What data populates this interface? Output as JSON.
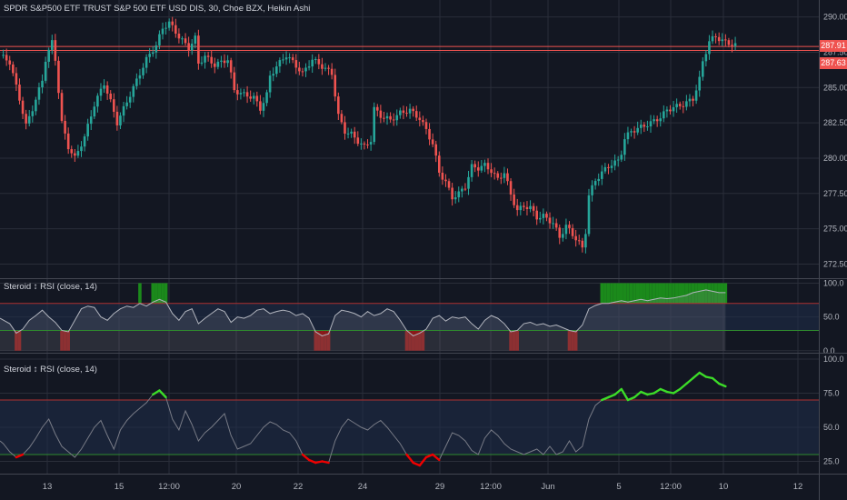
{
  "header": {
    "main_title": "SPDR S&P500 ETF TRUST S&P 500 ETF USD DIS, 30, Choe BZX, Heikin Ashi",
    "pane2_title": "Steroid ↕ RSI (close, 14)",
    "pane3_title": "Steroid ↕ RSI (close, 14)"
  },
  "price_tags": {
    "upper": "287.91",
    "lower": "287.63"
  },
  "colors": {
    "background": "#131722",
    "grid": "#2a2e39",
    "bull": "#26a69a",
    "bear": "#ef5350",
    "rsi_line": "#b2b5be",
    "green_band": "#1b8a1b",
    "red_band": "#8b1a1a",
    "green_line": "#3cdc28",
    "red_line": "#f00000",
    "overbought": "#b03030",
    "oversold": "#2e8b2e"
  },
  "chart_data": [
    {
      "type": "candlestick",
      "title": "SPDR S&P500 ETF TRUST S&P 500 ETF USD DIS, 30, Choe BZX, Heikin Ashi",
      "ylim": [
        271.5,
        291.2
      ],
      "y_ticks": [
        "290.00",
        "287.50",
        "285.00",
        "282.50",
        "280.00",
        "277.50",
        "275.00",
        "272.50"
      ],
      "horizontal_lines": [
        287.91,
        287.63
      ],
      "x_ticks": [
        "13",
        "15",
        "12:00",
        "20",
        "22",
        "24",
        "29",
        "12:00",
        "Jun",
        "5",
        "12:00",
        "10",
        "12"
      ],
      "close_path": [
        [
          0,
          287.3
        ],
        [
          3,
          286.8
        ],
        [
          6,
          284.2
        ],
        [
          8,
          282.3
        ],
        [
          10,
          283.5
        ],
        [
          13,
          285.5
        ],
        [
          14,
          287.0
        ],
        [
          16,
          288.2
        ],
        [
          17,
          287.0
        ],
        [
          19,
          282.5
        ],
        [
          21,
          280.8
        ],
        [
          23,
          280.0
        ],
        [
          26,
          281.5
        ],
        [
          29,
          283.8
        ],
        [
          32,
          285.3
        ],
        [
          34,
          284.0
        ],
        [
          36,
          282.5
        ],
        [
          39,
          284.0
        ],
        [
          42,
          285.5
        ],
        [
          45,
          287.0
        ],
        [
          48,
          288.0
        ],
        [
          50,
          289.2
        ],
        [
          52,
          289.6
        ],
        [
          55,
          288.6
        ],
        [
          58,
          287.8
        ],
        [
          60,
          288.5
        ],
        [
          61,
          286.7
        ],
        [
          63,
          287.2
        ],
        [
          66,
          286.6
        ],
        [
          68,
          286.8
        ],
        [
          70,
          287.0
        ],
        [
          72,
          284.8
        ],
        [
          75,
          284.5
        ],
        [
          78,
          284.3
        ],
        [
          80,
          283.5
        ],
        [
          82,
          284.5
        ],
        [
          83,
          285.8
        ],
        [
          85,
          286.5
        ],
        [
          88,
          287.3
        ],
        [
          90,
          286.8
        ],
        [
          93,
          286.0
        ],
        [
          96,
          287.0
        ],
        [
          99,
          286.5
        ],
        [
          102,
          286.0
        ],
        [
          104,
          283.0
        ],
        [
          106,
          281.9
        ],
        [
          108,
          281.7
        ],
        [
          110,
          281.2
        ],
        [
          112,
          280.8
        ],
        [
          114,
          281.3
        ],
        [
          115,
          283.5
        ],
        [
          117,
          283.0
        ],
        [
          120,
          282.7
        ],
        [
          123,
          283.2
        ],
        [
          126,
          283.4
        ],
        [
          129,
          282.8
        ],
        [
          131,
          282.0
        ],
        [
          133,
          281.0
        ],
        [
          135,
          279.0
        ],
        [
          137,
          278.3
        ],
        [
          139,
          277.2
        ],
        [
          141,
          277.5
        ],
        [
          143,
          278.0
        ],
        [
          145,
          279.4
        ],
        [
          147,
          279.3
        ],
        [
          149,
          279.5
        ],
        [
          151,
          279.1
        ],
        [
          153,
          278.5
        ],
        [
          155,
          279.0
        ],
        [
          157,
          277.4
        ],
        [
          159,
          276.3
        ],
        [
          161,
          276.6
        ],
        [
          163,
          276.5
        ],
        [
          165,
          275.8
        ],
        [
          167,
          275.9
        ],
        [
          170,
          275.4
        ],
        [
          172,
          274.4
        ],
        [
          174,
          275.2
        ],
        [
          176,
          274.6
        ],
        [
          178,
          274.0
        ],
        [
          179,
          273.6
        ],
        [
          180,
          274.8
        ],
        [
          181,
          277.4
        ],
        [
          183,
          278.4
        ],
        [
          185,
          279.0
        ],
        [
          188,
          279.6
        ],
        [
          190,
          279.8
        ],
        [
          191,
          280.4
        ],
        [
          192,
          281.4
        ],
        [
          194,
          281.9
        ],
        [
          197,
          282.2
        ],
        [
          200,
          282.5
        ],
        [
          203,
          282.9
        ],
        [
          205,
          283.4
        ],
        [
          207,
          283.6
        ],
        [
          210,
          283.8
        ],
        [
          213,
          284.2
        ],
        [
          215,
          285.6
        ],
        [
          216,
          286.8
        ],
        [
          218,
          288.3
        ],
        [
          220,
          288.6
        ],
        [
          223,
          288.2
        ],
        [
          226,
          288.0
        ]
      ]
    },
    {
      "type": "line",
      "title": "Steroid ↕ RSI (close, 14)",
      "ylim": [
        -3,
        106
      ],
      "y_ticks": [
        "100.0",
        "50.0",
        "0.0"
      ],
      "levels": [
        70,
        30
      ],
      "path": [
        [
          0,
          48
        ],
        [
          3,
          40
        ],
        [
          5,
          26
        ],
        [
          7,
          32
        ],
        [
          9,
          45
        ],
        [
          11,
          52
        ],
        [
          13,
          60
        ],
        [
          15,
          50
        ],
        [
          17,
          42
        ],
        [
          19,
          30
        ],
        [
          21,
          28
        ],
        [
          23,
          45
        ],
        [
          25,
          62
        ],
        [
          27,
          66
        ],
        [
          29,
          64
        ],
        [
          31,
          50
        ],
        [
          33,
          45
        ],
        [
          35,
          55
        ],
        [
          37,
          62
        ],
        [
          39,
          66
        ],
        [
          41,
          64
        ],
        [
          43,
          70
        ],
        [
          45,
          66
        ],
        [
          47,
          72
        ],
        [
          49,
          76
        ],
        [
          51,
          72
        ],
        [
          53,
          55
        ],
        [
          55,
          45
        ],
        [
          57,
          58
        ],
        [
          59,
          62
        ],
        [
          61,
          40
        ],
        [
          63,
          48
        ],
        [
          65,
          55
        ],
        [
          67,
          62
        ],
        [
          69,
          58
        ],
        [
          71,
          42
        ],
        [
          73,
          50
        ],
        [
          75,
          48
        ],
        [
          77,
          52
        ],
        [
          79,
          60
        ],
        [
          81,
          62
        ],
        [
          83,
          55
        ],
        [
          85,
          58
        ],
        [
          87,
          60
        ],
        [
          89,
          58
        ],
        [
          91,
          52
        ],
        [
          93,
          55
        ],
        [
          95,
          48
        ],
        [
          97,
          28
        ],
        [
          99,
          22
        ],
        [
          101,
          25
        ],
        [
          103,
          52
        ],
        [
          105,
          60
        ],
        [
          107,
          58
        ],
        [
          109,
          55
        ],
        [
          111,
          50
        ],
        [
          113,
          58
        ],
        [
          115,
          52
        ],
        [
          117,
          55
        ],
        [
          119,
          62
        ],
        [
          121,
          58
        ],
        [
          123,
          45
        ],
        [
          125,
          30
        ],
        [
          127,
          22
        ],
        [
          129,
          26
        ],
        [
          131,
          32
        ],
        [
          133,
          48
        ],
        [
          135,
          52
        ],
        [
          137,
          44
        ],
        [
          139,
          50
        ],
        [
          141,
          48
        ],
        [
          143,
          50
        ],
        [
          145,
          40
        ],
        [
          147,
          32
        ],
        [
          149,
          45
        ],
        [
          151,
          52
        ],
        [
          153,
          48
        ],
        [
          155,
          40
        ],
        [
          157,
          28
        ],
        [
          159,
          30
        ],
        [
          161,
          40
        ],
        [
          163,
          42
        ],
        [
          165,
          38
        ],
        [
          167,
          40
        ],
        [
          169,
          36
        ],
        [
          171,
          38
        ],
        [
          173,
          34
        ],
        [
          175,
          30
        ],
        [
          177,
          28
        ],
        [
          179,
          38
        ],
        [
          181,
          62
        ],
        [
          183,
          67
        ],
        [
          185,
          70
        ],
        [
          187,
          70
        ],
        [
          189,
          72
        ],
        [
          191,
          74
        ],
        [
          193,
          72
        ],
        [
          195,
          74
        ],
        [
          197,
          76
        ],
        [
          199,
          74
        ],
        [
          201,
          76
        ],
        [
          203,
          78
        ],
        [
          205,
          77
        ],
        [
          207,
          78
        ],
        [
          209,
          80
        ],
        [
          211,
          82
        ],
        [
          213,
          86
        ],
        [
          215,
          88
        ],
        [
          217,
          90
        ],
        [
          219,
          88
        ],
        [
          221,
          86
        ],
        [
          223,
          86
        ]
      ]
    },
    {
      "type": "line",
      "title": "Steroid ↕ RSI (close, 14)",
      "ylim": [
        16,
        104
      ],
      "y_ticks": [
        "100.0",
        "75.0",
        "50.0",
        "25.0"
      ],
      "levels": [
        70,
        30
      ],
      "path": [
        [
          0,
          40
        ],
        [
          1,
          38
        ],
        [
          3,
          32
        ],
        [
          5,
          28
        ],
        [
          7,
          30
        ],
        [
          9,
          35
        ],
        [
          11,
          42
        ],
        [
          13,
          50
        ],
        [
          15,
          56
        ],
        [
          17,
          45
        ],
        [
          19,
          36
        ],
        [
          21,
          32
        ],
        [
          23,
          28
        ],
        [
          25,
          34
        ],
        [
          27,
          42
        ],
        [
          29,
          50
        ],
        [
          31,
          55
        ],
        [
          33,
          44
        ],
        [
          35,
          34
        ],
        [
          37,
          48
        ],
        [
          39,
          55
        ],
        [
          41,
          60
        ],
        [
          43,
          64
        ],
        [
          45,
          68
        ],
        [
          47,
          74
        ],
        [
          49,
          77
        ],
        [
          51,
          72
        ],
        [
          53,
          56
        ],
        [
          55,
          48
        ],
        [
          57,
          62
        ],
        [
          59,
          52
        ],
        [
          61,
          40
        ],
        [
          63,
          46
        ],
        [
          65,
          50
        ],
        [
          67,
          55
        ],
        [
          69,
          60
        ],
        [
          71,
          44
        ],
        [
          73,
          34
        ],
        [
          75,
          36
        ],
        [
          77,
          38
        ],
        [
          79,
          44
        ],
        [
          81,
          50
        ],
        [
          83,
          54
        ],
        [
          85,
          52
        ],
        [
          87,
          48
        ],
        [
          89,
          46
        ],
        [
          91,
          40
        ],
        [
          93,
          30
        ],
        [
          95,
          26
        ],
        [
          97,
          24
        ],
        [
          99,
          25
        ],
        [
          101,
          24
        ],
        [
          103,
          40
        ],
        [
          105,
          50
        ],
        [
          107,
          56
        ],
        [
          109,
          53
        ],
        [
          111,
          50
        ],
        [
          113,
          48
        ],
        [
          115,
          52
        ],
        [
          117,
          55
        ],
        [
          119,
          50
        ],
        [
          121,
          44
        ],
        [
          123,
          38
        ],
        [
          125,
          30
        ],
        [
          127,
          24
        ],
        [
          129,
          22
        ],
        [
          131,
          28
        ],
        [
          133,
          30
        ],
        [
          135,
          26
        ],
        [
          137,
          36
        ],
        [
          139,
          46
        ],
        [
          141,
          44
        ],
        [
          143,
          40
        ],
        [
          145,
          33
        ],
        [
          147,
          30
        ],
        [
          149,
          42
        ],
        [
          151,
          48
        ],
        [
          153,
          44
        ],
        [
          155,
          38
        ],
        [
          157,
          34
        ],
        [
          159,
          32
        ],
        [
          161,
          30
        ],
        [
          163,
          32
        ],
        [
          165,
          34
        ],
        [
          167,
          30
        ],
        [
          169,
          36
        ],
        [
          171,
          30
        ],
        [
          173,
          32
        ],
        [
          175,
          40
        ],
        [
          177,
          32
        ],
        [
          179,
          36
        ],
        [
          181,
          56
        ],
        [
          183,
          66
        ],
        [
          185,
          70
        ],
        [
          187,
          72
        ],
        [
          189,
          74
        ],
        [
          191,
          78
        ],
        [
          193,
          70
        ],
        [
          195,
          72
        ],
        [
          197,
          76
        ],
        [
          199,
          74
        ],
        [
          201,
          75
        ],
        [
          203,
          78
        ],
        [
          205,
          76
        ],
        [
          207,
          75
        ],
        [
          209,
          78
        ],
        [
          211,
          82
        ],
        [
          213,
          86
        ],
        [
          215,
          90
        ],
        [
          217,
          87
        ],
        [
          219,
          86
        ],
        [
          221,
          82
        ],
        [
          223,
          80
        ]
      ]
    }
  ]
}
